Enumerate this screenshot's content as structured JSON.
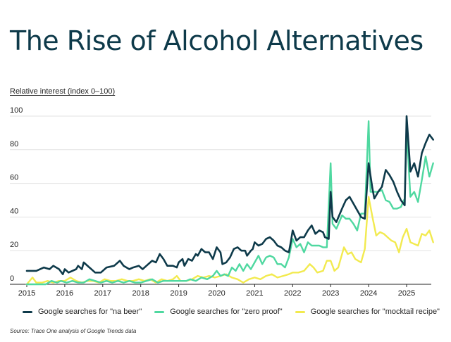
{
  "page": {
    "title": "The Rise of Alcohol Alternatives",
    "source": "Source: Trace One analysis of Google Trends data"
  },
  "chart_data": {
    "type": "line",
    "title": "The Rise of Alcohol Alternatives",
    "ylabel": "Relative interest (index 0–100)",
    "xlabel": "",
    "ylim": [
      0,
      100
    ],
    "xlim": [
      2015,
      2025.75
    ],
    "y_ticks": [
      "0",
      "20",
      "40",
      "60",
      "80",
      "100"
    ],
    "x_ticks": [
      "2015",
      "2016",
      "2017",
      "2018",
      "2019",
      "2020",
      "2021",
      "2022",
      "2023",
      "2024",
      "2025"
    ],
    "grid": true,
    "legend_position": "bottom",
    "series": [
      {
        "name": "Google searches for \"na beer\"",
        "color": "#0e3a4a",
        "points": [
          [
            2015.0,
            8
          ],
          [
            2015.25,
            8
          ],
          [
            2015.45,
            10
          ],
          [
            2015.6,
            9
          ],
          [
            2015.7,
            11
          ],
          [
            2015.85,
            9
          ],
          [
            2015.95,
            6
          ],
          [
            2016.0,
            9
          ],
          [
            2016.1,
            7
          ],
          [
            2016.3,
            9
          ],
          [
            2016.35,
            11
          ],
          [
            2016.45,
            9
          ],
          [
            2016.5,
            13
          ],
          [
            2016.65,
            10
          ],
          [
            2016.8,
            7
          ],
          [
            2016.95,
            7
          ],
          [
            2017.1,
            10
          ],
          [
            2017.3,
            11
          ],
          [
            2017.45,
            14
          ],
          [
            2017.55,
            11
          ],
          [
            2017.7,
            9
          ],
          [
            2017.8,
            10
          ],
          [
            2017.95,
            11
          ],
          [
            2018.05,
            9
          ],
          [
            2018.15,
            11
          ],
          [
            2018.3,
            14
          ],
          [
            2018.4,
            13
          ],
          [
            2018.5,
            18
          ],
          [
            2018.6,
            15
          ],
          [
            2018.7,
            11
          ],
          [
            2018.85,
            11
          ],
          [
            2018.95,
            10
          ],
          [
            2019.0,
            13
          ],
          [
            2019.1,
            15
          ],
          [
            2019.15,
            11
          ],
          [
            2019.25,
            15
          ],
          [
            2019.35,
            14
          ],
          [
            2019.45,
            18
          ],
          [
            2019.5,
            17
          ],
          [
            2019.6,
            21
          ],
          [
            2019.7,
            19
          ],
          [
            2019.8,
            19
          ],
          [
            2019.9,
            15
          ],
          [
            2020.0,
            22
          ],
          [
            2020.1,
            19
          ],
          [
            2020.15,
            12
          ],
          [
            2020.25,
            13
          ],
          [
            2020.35,
            16
          ],
          [
            2020.45,
            21
          ],
          [
            2020.55,
            22
          ],
          [
            2020.65,
            20
          ],
          [
            2020.75,
            20
          ],
          [
            2020.8,
            17
          ],
          [
            2020.9,
            20
          ],
          [
            2020.95,
            21
          ],
          [
            2021.0,
            25
          ],
          [
            2021.1,
            23
          ],
          [
            2021.2,
            24
          ],
          [
            2021.3,
            27
          ],
          [
            2021.4,
            28
          ],
          [
            2021.5,
            26
          ],
          [
            2021.6,
            23
          ],
          [
            2021.7,
            22
          ],
          [
            2021.8,
            20
          ],
          [
            2021.9,
            19
          ],
          [
            2021.95,
            25
          ],
          [
            2022.0,
            32
          ],
          [
            2022.1,
            26
          ],
          [
            2022.2,
            28
          ],
          [
            2022.3,
            28
          ],
          [
            2022.4,
            32
          ],
          [
            2022.5,
            35
          ],
          [
            2022.6,
            30
          ],
          [
            2022.7,
            32
          ],
          [
            2022.8,
            31
          ],
          [
            2022.85,
            28
          ],
          [
            2022.95,
            27
          ],
          [
            2023.0,
            55
          ],
          [
            2023.05,
            40
          ],
          [
            2023.15,
            37
          ],
          [
            2023.3,
            45
          ],
          [
            2023.4,
            50
          ],
          [
            2023.5,
            52
          ],
          [
            2023.6,
            48
          ],
          [
            2023.7,
            44
          ],
          [
            2023.8,
            40
          ],
          [
            2023.9,
            39
          ],
          [
            2024.0,
            72
          ],
          [
            2024.1,
            57
          ],
          [
            2024.15,
            51
          ],
          [
            2024.25,
            55
          ],
          [
            2024.35,
            58
          ],
          [
            2024.45,
            68
          ],
          [
            2024.55,
            65
          ],
          [
            2024.65,
            61
          ],
          [
            2024.75,
            55
          ],
          [
            2024.85,
            50
          ],
          [
            2024.95,
            47
          ],
          [
            2025.0,
            100
          ],
          [
            2025.1,
            67
          ],
          [
            2025.2,
            72
          ],
          [
            2025.3,
            64
          ],
          [
            2025.4,
            78
          ],
          [
            2025.5,
            84
          ],
          [
            2025.6,
            89
          ],
          [
            2025.7,
            86
          ]
        ]
      },
      {
        "name": "Google searches for \"zero proof\"",
        "color": "#4fd8a0",
        "points": [
          [
            2015.0,
            0
          ],
          [
            2015.2,
            0
          ],
          [
            2015.5,
            0
          ],
          [
            2015.65,
            2
          ],
          [
            2015.8,
            1
          ],
          [
            2015.9,
            2
          ],
          [
            2016.05,
            1
          ],
          [
            2016.2,
            2
          ],
          [
            2016.35,
            1
          ],
          [
            2016.5,
            1
          ],
          [
            2016.65,
            3
          ],
          [
            2016.8,
            2
          ],
          [
            2016.95,
            1
          ],
          [
            2017.1,
            2
          ],
          [
            2017.25,
            1
          ],
          [
            2017.4,
            2
          ],
          [
            2017.55,
            1
          ],
          [
            2017.7,
            2
          ],
          [
            2017.85,
            1
          ],
          [
            2018.0,
            1
          ],
          [
            2018.15,
            2
          ],
          [
            2018.3,
            3
          ],
          [
            2018.45,
            1
          ],
          [
            2018.6,
            2
          ],
          [
            2018.75,
            2
          ],
          [
            2018.9,
            2
          ],
          [
            2019.05,
            2
          ],
          [
            2019.2,
            2
          ],
          [
            2019.3,
            3
          ],
          [
            2019.45,
            2
          ],
          [
            2019.6,
            4
          ],
          [
            2019.75,
            3
          ],
          [
            2019.9,
            5
          ],
          [
            2020.0,
            8
          ],
          [
            2020.1,
            5
          ],
          [
            2020.2,
            6
          ],
          [
            2020.3,
            5
          ],
          [
            2020.4,
            10
          ],
          [
            2020.5,
            8
          ],
          [
            2020.6,
            12
          ],
          [
            2020.7,
            8
          ],
          [
            2020.8,
            12
          ],
          [
            2020.9,
            9
          ],
          [
            2021.0,
            13
          ],
          [
            2021.1,
            17
          ],
          [
            2021.2,
            12
          ],
          [
            2021.3,
            16
          ],
          [
            2021.4,
            17
          ],
          [
            2021.5,
            16
          ],
          [
            2021.6,
            12
          ],
          [
            2021.7,
            12
          ],
          [
            2021.8,
            10
          ],
          [
            2021.9,
            16
          ],
          [
            2022.0,
            27
          ],
          [
            2022.1,
            22
          ],
          [
            2022.2,
            24
          ],
          [
            2022.3,
            19
          ],
          [
            2022.4,
            25
          ],
          [
            2022.5,
            23
          ],
          [
            2022.6,
            23
          ],
          [
            2022.7,
            23
          ],
          [
            2022.8,
            22
          ],
          [
            2022.9,
            22
          ],
          [
            2023.0,
            72
          ],
          [
            2023.05,
            36
          ],
          [
            2023.15,
            33
          ],
          [
            2023.3,
            41
          ],
          [
            2023.4,
            39
          ],
          [
            2023.5,
            39
          ],
          [
            2023.6,
            36
          ],
          [
            2023.7,
            32
          ],
          [
            2023.8,
            42
          ],
          [
            2023.9,
            42
          ],
          [
            2024.0,
            97
          ],
          [
            2024.05,
            55
          ],
          [
            2024.15,
            55
          ],
          [
            2024.25,
            55
          ],
          [
            2024.35,
            56
          ],
          [
            2024.45,
            50
          ],
          [
            2024.55,
            49
          ],
          [
            2024.65,
            45
          ],
          [
            2024.75,
            45
          ],
          [
            2024.85,
            46
          ],
          [
            2024.95,
            51
          ],
          [
            2025.0,
            92
          ],
          [
            2025.1,
            52
          ],
          [
            2025.2,
            55
          ],
          [
            2025.3,
            49
          ],
          [
            2025.4,
            62
          ],
          [
            2025.5,
            76
          ],
          [
            2025.6,
            64
          ],
          [
            2025.7,
            72
          ]
        ]
      },
      {
        "name": "Google searches for \"mocktail recipe\"",
        "color": "#f2ea4f",
        "points": [
          [
            2015.0,
            0
          ],
          [
            2015.15,
            4
          ],
          [
            2015.25,
            1
          ],
          [
            2015.4,
            1
          ],
          [
            2015.55,
            2
          ],
          [
            2015.7,
            1
          ],
          [
            2015.85,
            2
          ],
          [
            2016.0,
            2
          ],
          [
            2016.15,
            4
          ],
          [
            2016.3,
            2
          ],
          [
            2016.45,
            1
          ],
          [
            2016.6,
            2
          ],
          [
            2016.75,
            2
          ],
          [
            2016.9,
            1
          ],
          [
            2017.05,
            3
          ],
          [
            2017.2,
            2
          ],
          [
            2017.35,
            2
          ],
          [
            2017.5,
            3
          ],
          [
            2017.65,
            2
          ],
          [
            2017.8,
            2
          ],
          [
            2017.95,
            3
          ],
          [
            2018.1,
            2
          ],
          [
            2018.25,
            3
          ],
          [
            2018.4,
            1
          ],
          [
            2018.55,
            3
          ],
          [
            2018.7,
            2
          ],
          [
            2018.85,
            3
          ],
          [
            2018.95,
            5
          ],
          [
            2019.05,
            2
          ],
          [
            2019.2,
            2
          ],
          [
            2019.35,
            3
          ],
          [
            2019.5,
            5
          ],
          [
            2019.65,
            4
          ],
          [
            2019.8,
            5
          ],
          [
            2019.95,
            4
          ],
          [
            2020.1,
            5
          ],
          [
            2020.25,
            6
          ],
          [
            2020.4,
            4
          ],
          [
            2020.55,
            3
          ],
          [
            2020.7,
            1
          ],
          [
            2020.85,
            3
          ],
          [
            2021.0,
            4
          ],
          [
            2021.15,
            3
          ],
          [
            2021.3,
            5
          ],
          [
            2021.45,
            6
          ],
          [
            2021.6,
            4
          ],
          [
            2021.75,
            5
          ],
          [
            2021.9,
            6
          ],
          [
            2022.0,
            7
          ],
          [
            2022.15,
            7
          ],
          [
            2022.3,
            8
          ],
          [
            2022.45,
            12
          ],
          [
            2022.55,
            10
          ],
          [
            2022.65,
            7
          ],
          [
            2022.8,
            8
          ],
          [
            2022.9,
            14
          ],
          [
            2023.0,
            14
          ],
          [
            2023.1,
            8
          ],
          [
            2023.2,
            10
          ],
          [
            2023.35,
            22
          ],
          [
            2023.45,
            18
          ],
          [
            2023.55,
            19
          ],
          [
            2023.65,
            15
          ],
          [
            2023.8,
            13
          ],
          [
            2023.9,
            21
          ],
          [
            2024.0,
            52
          ],
          [
            2024.1,
            40
          ],
          [
            2024.2,
            29
          ],
          [
            2024.3,
            31
          ],
          [
            2024.4,
            30
          ],
          [
            2024.5,
            28
          ],
          [
            2024.6,
            26
          ],
          [
            2024.7,
            25
          ],
          [
            2024.8,
            19
          ],
          [
            2024.9,
            28
          ],
          [
            2025.0,
            33
          ],
          [
            2025.1,
            25
          ],
          [
            2025.2,
            24
          ],
          [
            2025.3,
            23
          ],
          [
            2025.4,
            30
          ],
          [
            2025.5,
            29
          ],
          [
            2025.6,
            32
          ],
          [
            2025.7,
            25
          ]
        ]
      }
    ]
  }
}
